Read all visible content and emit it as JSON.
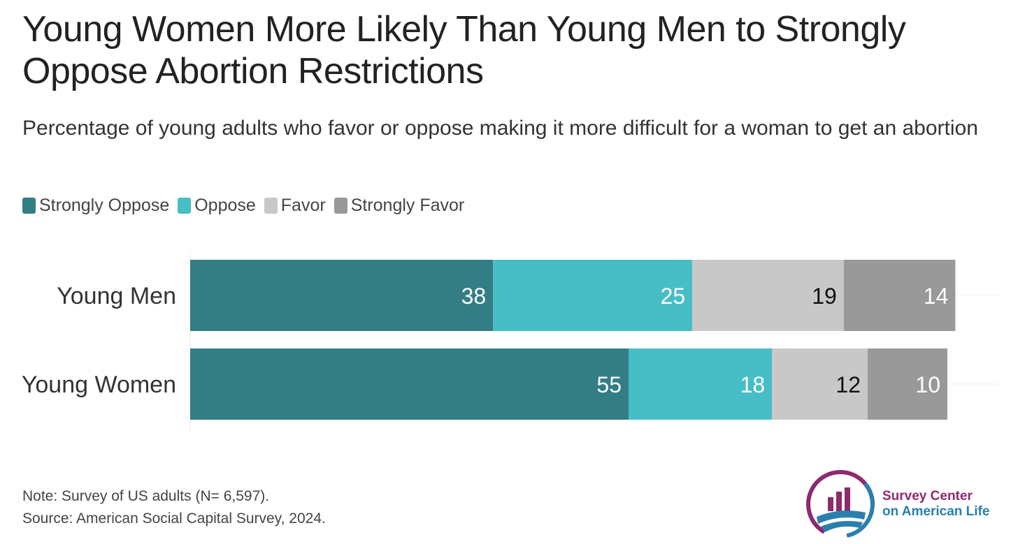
{
  "title": "Young Women More Likely Than Young Men to Strongly Oppose Abortion Restrictions",
  "subtitle": "Percentage of young adults who favor or oppose making it more difficult for a woman to get an abortion",
  "legend": [
    {
      "label": "Strongly Oppose",
      "color": "#327e84"
    },
    {
      "label": "Oppose",
      "color": "#47bec6"
    },
    {
      "label": "Favor",
      "color": "#c8c8c8"
    },
    {
      "label": "Strongly Favor",
      "color": "#999999"
    }
  ],
  "chart_data": {
    "type": "bar",
    "orientation": "horizontal",
    "stacked": true,
    "categories": [
      "Young Men",
      "Young Women"
    ],
    "series": [
      {
        "name": "Strongly Oppose",
        "values": [
          38,
          55
        ],
        "color": "#327e84",
        "label_color": "#ffffff"
      },
      {
        "name": "Oppose",
        "values": [
          25,
          18
        ],
        "color": "#47bec6",
        "label_color": "#ffffff"
      },
      {
        "name": "Favor",
        "values": [
          19,
          12
        ],
        "color": "#c8c8c8",
        "label_color": "#111111"
      },
      {
        "name": "Strongly Favor",
        "values": [
          14,
          10
        ],
        "color": "#999999",
        "label_color": "#ffffff"
      }
    ],
    "xlim": [
      0,
      100
    ],
    "legend_position": "top-left",
    "grid": false
  },
  "footer": {
    "note": "Note: Survey of US adults (N= 6,597).",
    "source": "Source: American Social Capital Survey, 2024."
  },
  "logo": {
    "line1": "Survey Center",
    "line2": "on American Life"
  }
}
